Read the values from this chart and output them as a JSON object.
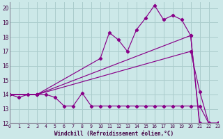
{
  "xlabel": "Windchill (Refroidissement éolien,°C)",
  "bg_color": "#cce8e8",
  "grid_color": "#aacccc",
  "line_color": "#880088",
  "xlim": [
    0,
    23
  ],
  "ylim": [
    12,
    20.4
  ],
  "series": [
    {
      "x": [
        0,
        1,
        2,
        3,
        4,
        5,
        6,
        7,
        8,
        9,
        10,
        11,
        12,
        13,
        14,
        15,
        16,
        17,
        18,
        19,
        20,
        21,
        22,
        23
      ],
      "y": [
        14,
        13.8,
        14.0,
        14.0,
        14.0,
        13.8,
        13.2,
        13.2,
        14.1,
        13.2,
        13.2,
        13.2,
        13.2,
        13.2,
        13.2,
        13.2,
        13.2,
        13.2,
        13.2,
        13.2,
        13.2,
        13.2,
        12.0,
        12.0
      ]
    },
    {
      "x": [
        0,
        3,
        20,
        21,
        22,
        23
      ],
      "y": [
        14,
        14,
        17.0,
        14.2,
        12.0,
        12.0
      ]
    },
    {
      "x": [
        0,
        3,
        20,
        21,
        22,
        23
      ],
      "y": [
        14,
        14,
        18.1,
        12.0,
        12.0,
        12.0
      ]
    },
    {
      "x": [
        0,
        3,
        10,
        11,
        12,
        13,
        14,
        15,
        16,
        17,
        18,
        19,
        20,
        21,
        22,
        23
      ],
      "y": [
        14,
        14,
        16.5,
        18.3,
        17.8,
        17.0,
        18.5,
        19.3,
        20.2,
        19.2,
        19.5,
        19.2,
        18.1,
        11.8,
        12.0,
        12.0
      ]
    }
  ]
}
